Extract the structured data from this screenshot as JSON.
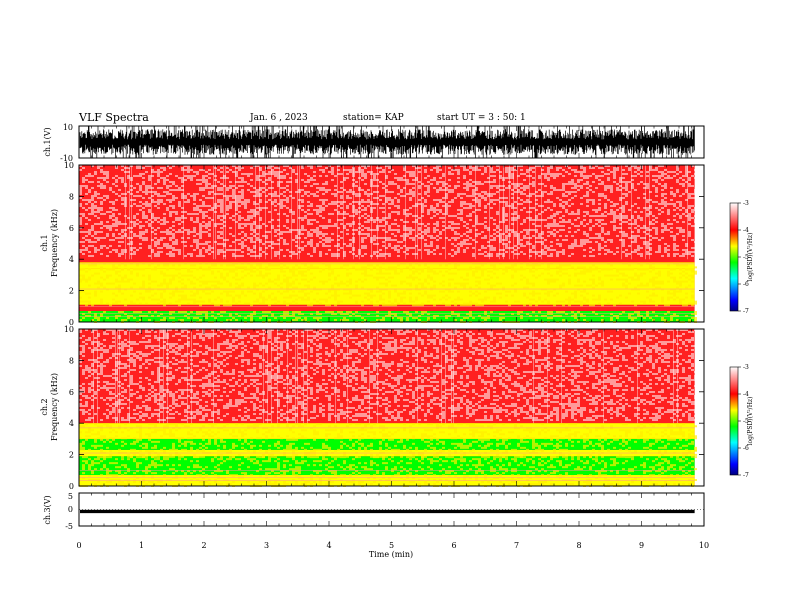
{
  "header": {
    "title": "VLF Spectra",
    "date": "Jan. 6 , 2023",
    "station": "station= KAP",
    "start": "start UT = 3 : 50: 1"
  },
  "colors": {
    "axes": "#000000",
    "spectrum_background": "#ff2020",
    "band_strong": "#22ee22",
    "band_mid": "#ffee00",
    "waveform": "#000000"
  },
  "chart_data": [
    {
      "type": "line",
      "panel": "ch1-waveform",
      "ylabel": "ch.1(V)",
      "ylim": [
        -10,
        10
      ],
      "yticks": [
        "10",
        "-10"
      ],
      "xlim": [
        0,
        10
      ],
      "envelope": {
        "min": -10,
        "max": 10,
        "typical_min": -8,
        "typical_max": 8
      },
      "x_end": 9.85
    },
    {
      "type": "heatmap",
      "panel": "ch1-spectrogram",
      "ylabel_top": "ch.1",
      "ylabel_bottom": "Frequency (kHz)",
      "xlim": [
        0,
        10
      ],
      "ylim": [
        0,
        10
      ],
      "yticks": [
        "0",
        "2",
        "4",
        "6",
        "8",
        "10"
      ],
      "x_end": 9.85,
      "colorbar": {
        "label": "log(PSD)(V²/Hz)",
        "range": [
          -7,
          -3
        ],
        "ticks": [
          "-3",
          "-4",
          "-5",
          "-6",
          "-7"
        ],
        "colormap": [
          "#000080",
          "#0000ff",
          "#00ffff",
          "#00ff00",
          "#ffff00",
          "#ff0000",
          "#ffffff"
        ]
      },
      "bands_khz": [
        {
          "from": 0.0,
          "to": 0.7,
          "level": -5.0
        },
        {
          "from": 1.1,
          "to": 3.4,
          "level": -4.6
        },
        {
          "from": 3.4,
          "to": 3.8,
          "level": -4.1
        }
      ],
      "background_level": -3.8
    },
    {
      "type": "heatmap",
      "panel": "ch2-spectrogram",
      "ylabel_top": "ch.2",
      "ylabel_bottom": "Frequency (kHz)",
      "xlim": [
        0,
        10
      ],
      "ylim": [
        0,
        10
      ],
      "yticks": [
        "0",
        "2",
        "4",
        "6",
        "8",
        "10"
      ],
      "x_end": 9.85,
      "colorbar": {
        "label": "log(PSD)(V²/Hz)",
        "range": [
          -7,
          -3
        ],
        "ticks": [
          "-3",
          "-4",
          "-5",
          "-6",
          "-7"
        ],
        "colormap": [
          "#000080",
          "#0000ff",
          "#00ffff",
          "#00ff00",
          "#ffff00",
          "#ff0000",
          "#ffffff"
        ]
      },
      "bands_khz": [
        {
          "from": 0.0,
          "to": 0.7,
          "level": -4.6
        },
        {
          "from": 0.7,
          "to": 1.9,
          "level": -5.1
        },
        {
          "from": 1.9,
          "to": 2.3,
          "level": -4.3
        },
        {
          "from": 2.3,
          "to": 3.0,
          "level": -5.0
        },
        {
          "from": 3.0,
          "to": 4.0,
          "level": -4.2
        }
      ],
      "background_level": -3.8
    },
    {
      "type": "line",
      "panel": "ch3-waveform",
      "ylabel": "ch.3(V)",
      "ylim": [
        -5,
        5
      ],
      "yticks": [
        "5",
        "0",
        "-5"
      ],
      "xlim": [
        0,
        10
      ],
      "level": {
        "min": -1.1,
        "max": -0.1
      },
      "x_end": 9.85,
      "xlabel": "Time (min)",
      "xticks": [
        "0",
        "1",
        "2",
        "3",
        "4",
        "5",
        "6",
        "7",
        "8",
        "9",
        "10"
      ]
    }
  ]
}
